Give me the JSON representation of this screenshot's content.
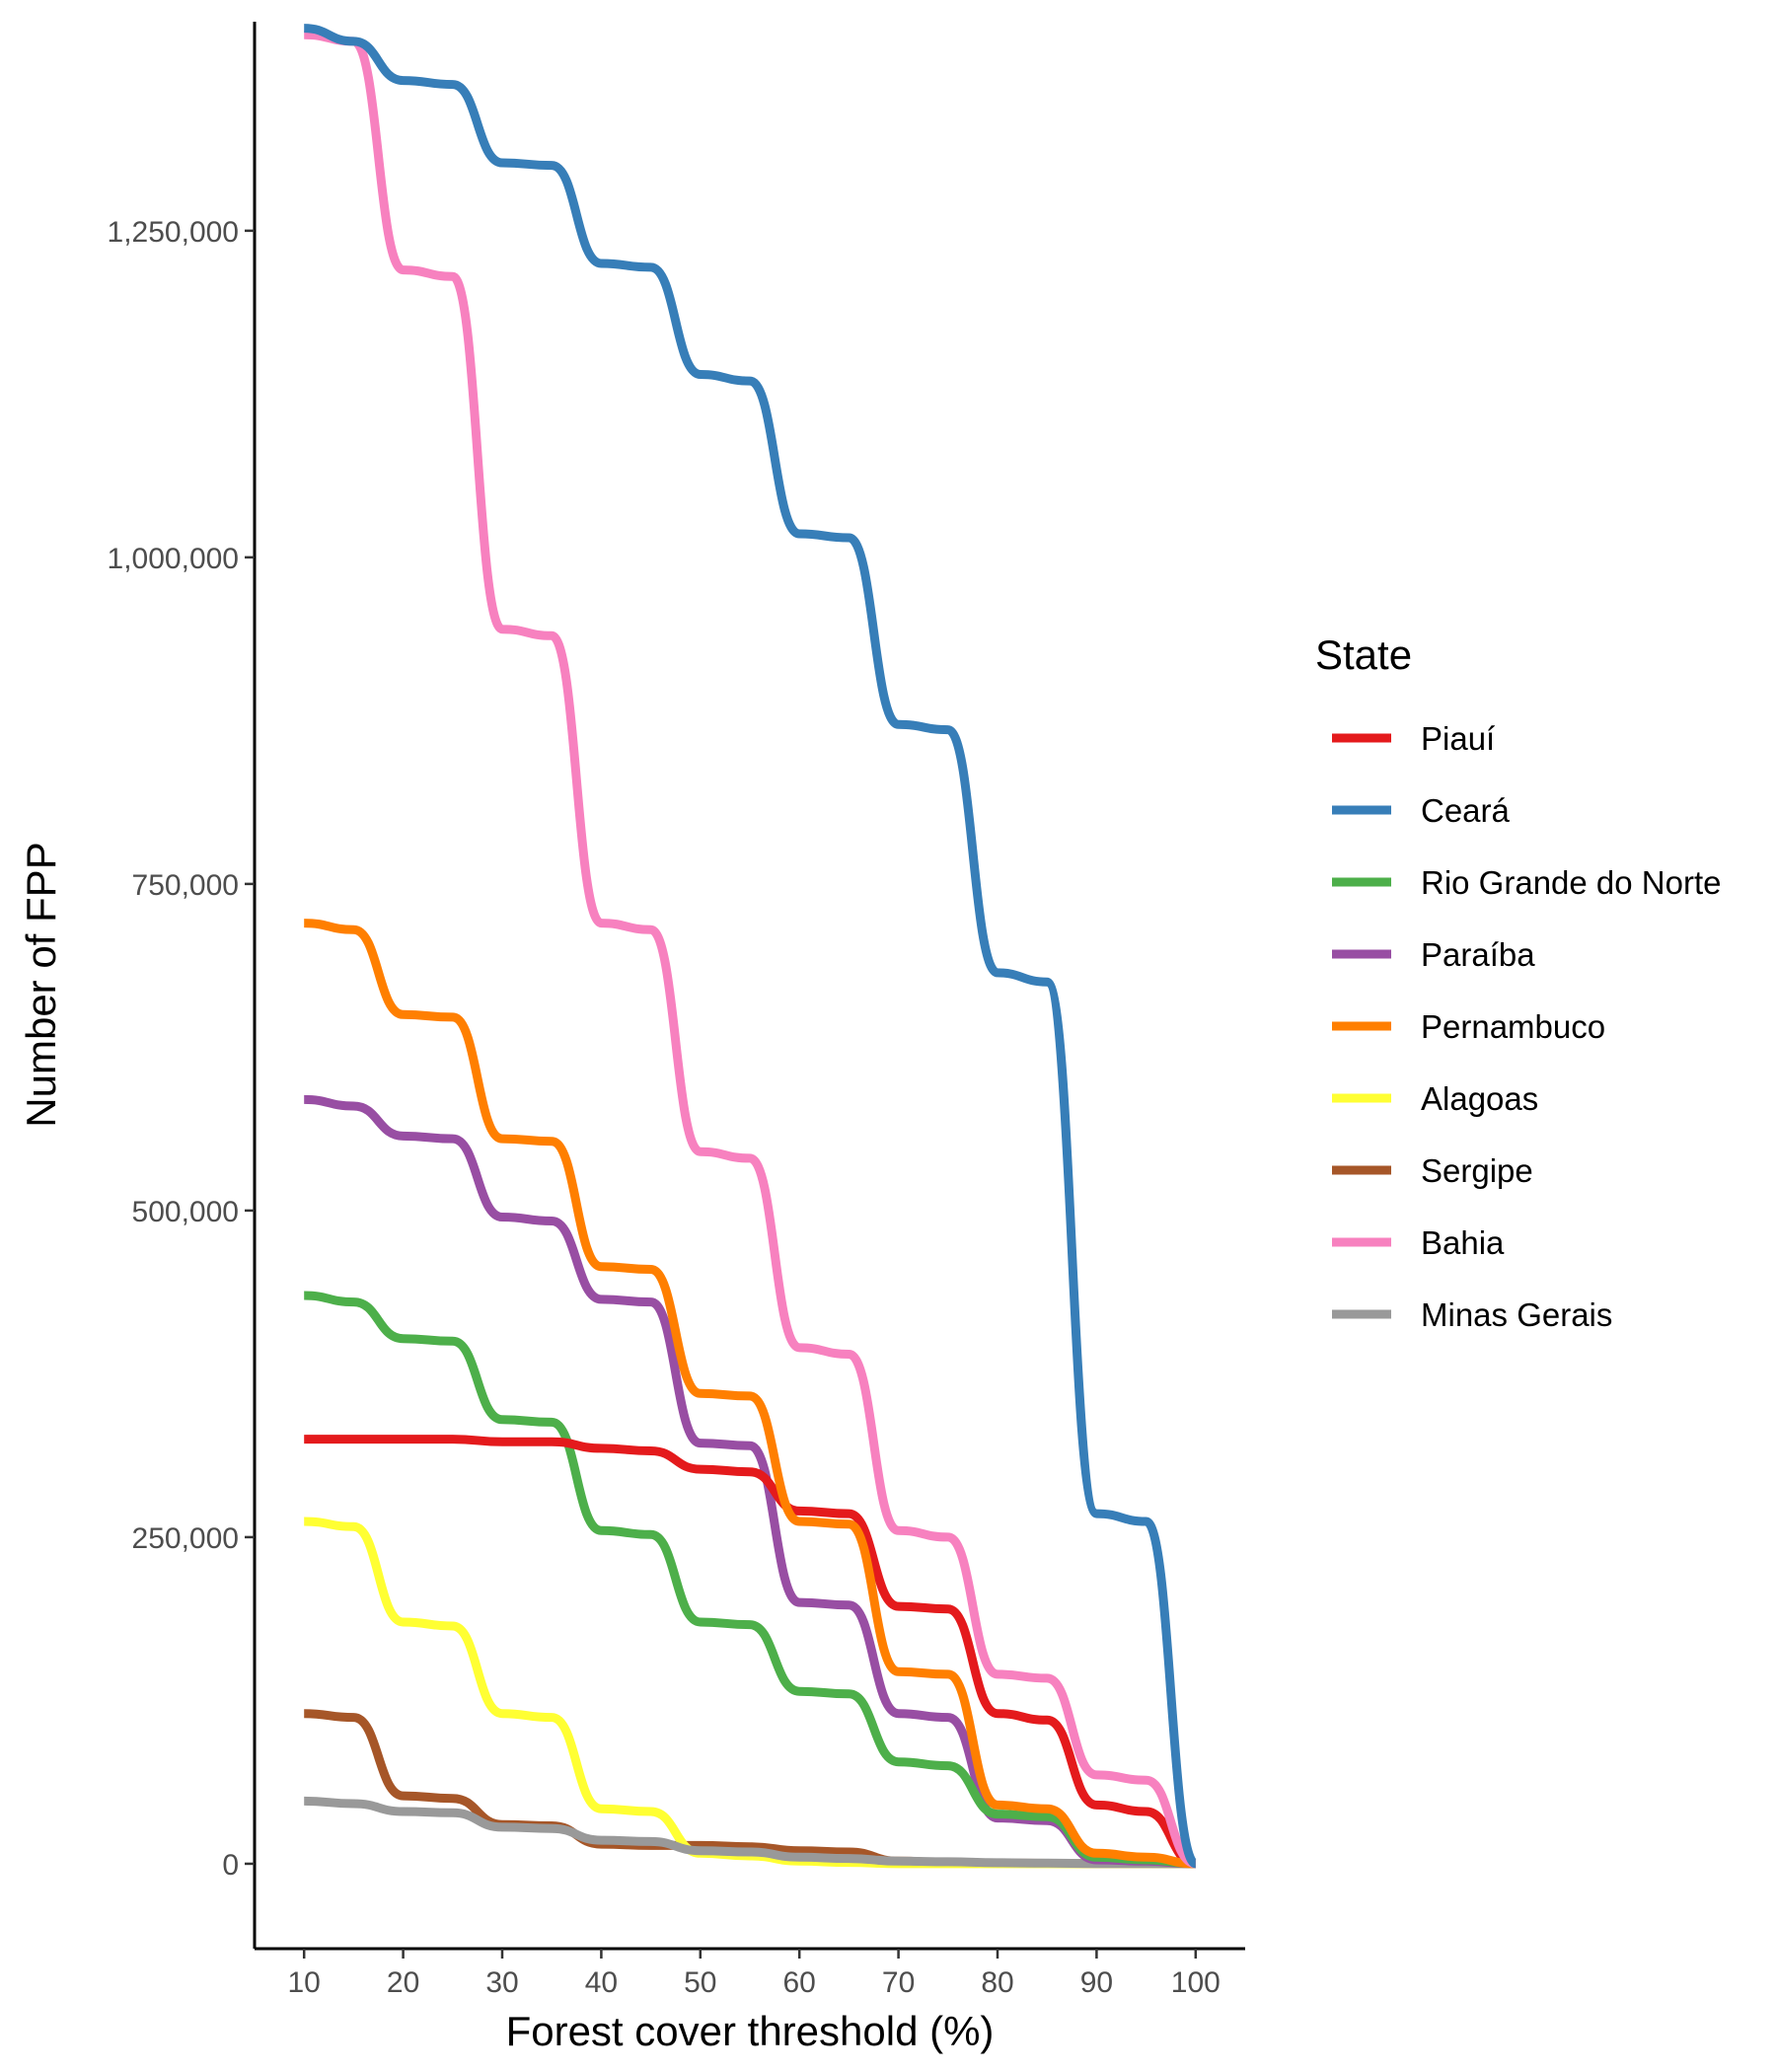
{
  "chart_data": {
    "type": "line",
    "xlabel": "Forest cover threshold (%)",
    "ylabel": "Number of FPP",
    "xlim": [
      5,
      105
    ],
    "ylim": [
      -65000,
      1410000
    ],
    "x_ticks": [
      10,
      20,
      30,
      40,
      50,
      60,
      70,
      80,
      90,
      100
    ],
    "y_ticks": [
      0,
      250000,
      500000,
      750000,
      1000000,
      1250000
    ],
    "y_tick_labels": [
      "0",
      "250,000",
      "500,000",
      "750,000",
      "1,000,000",
      "1,250,000"
    ],
    "grid": false,
    "legend_title": "State",
    "legend_position": "right",
    "x": [
      10,
      15,
      20,
      25,
      30,
      35,
      40,
      45,
      50,
      55,
      60,
      65,
      70,
      75,
      80,
      85,
      90,
      95,
      100
    ],
    "series": [
      {
        "name": "Piauí",
        "color": "#E41A1C",
        "values": [
          325000,
          325000,
          325000,
          325000,
          323000,
          323000,
          318000,
          316000,
          302000,
          300000,
          270000,
          268000,
          197000,
          195000,
          115000,
          110000,
          45000,
          40000,
          0
        ]
      },
      {
        "name": "Ceará",
        "color": "#377EB8",
        "values": [
          1405000,
          1395000,
          1365000,
          1362000,
          1302000,
          1300000,
          1225000,
          1222000,
          1140000,
          1135000,
          1018000,
          1015000,
          872000,
          868000,
          682000,
          675000,
          268000,
          262000,
          0
        ]
      },
      {
        "name": "Rio Grande do Norte",
        "color": "#4DAF4A",
        "values": [
          435000,
          430000,
          402000,
          400000,
          340000,
          338000,
          255000,
          252000,
          185000,
          183000,
          132000,
          130000,
          78000,
          75000,
          38000,
          36000,
          5000,
          3000,
          0
        ]
      },
      {
        "name": "Paraíba",
        "color": "#984EA3",
        "values": [
          585000,
          580000,
          557000,
          555000,
          495000,
          492000,
          432000,
          430000,
          322000,
          320000,
          200000,
          198000,
          115000,
          112000,
          35000,
          33000,
          3000,
          2000,
          0
        ]
      },
      {
        "name": "Pernambuco",
        "color": "#FF7F00",
        "values": [
          720000,
          715000,
          650000,
          648000,
          555000,
          553000,
          457000,
          455000,
          360000,
          358000,
          262000,
          260000,
          147000,
          145000,
          45000,
          42000,
          8000,
          5000,
          0
        ]
      },
      {
        "name": "Alagoas",
        "color": "#FFFF33",
        "values": [
          262000,
          258000,
          185000,
          182000,
          115000,
          112000,
          42000,
          40000,
          8000,
          6000,
          2000,
          1000,
          0,
          0,
          0,
          0,
          0,
          0,
          0
        ]
      },
      {
        "name": "Sergipe",
        "color": "#A65628",
        "values": [
          115000,
          112000,
          52000,
          50000,
          30000,
          29000,
          15000,
          14000,
          14000,
          13000,
          10000,
          9000,
          2000,
          1000,
          500,
          300,
          0,
          0,
          0
        ]
      },
      {
        "name": "Bahia",
        "color": "#F781BF",
        "values": [
          1400000,
          1395000,
          1220000,
          1215000,
          945000,
          940000,
          720000,
          715000,
          545000,
          540000,
          395000,
          390000,
          255000,
          250000,
          145000,
          142000,
          68000,
          64000,
          0
        ]
      },
      {
        "name": "Minas Gerais",
        "color": "#999999",
        "values": [
          48000,
          46000,
          40000,
          39000,
          28000,
          27000,
          18000,
          17000,
          10000,
          9000,
          5000,
          4000,
          2000,
          1500,
          800,
          500,
          200,
          100,
          0
        ]
      }
    ]
  }
}
